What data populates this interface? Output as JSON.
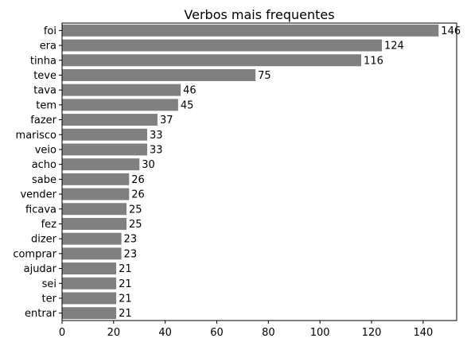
{
  "chart_data": {
    "type": "bar",
    "orientation": "horizontal",
    "title": "Verbos mais frequentes",
    "xlabel": "",
    "ylabel": "",
    "categories": [
      "foi",
      "era",
      "tinha",
      "teve",
      "tava",
      "tem",
      "fazer",
      "marisco",
      "veio",
      "acho",
      "sabe",
      "vender",
      "ficava",
      "fez",
      "dizer",
      "comprar",
      "ajudar",
      "sei",
      "ter",
      "entrar"
    ],
    "values": [
      146,
      124,
      116,
      75,
      46,
      45,
      37,
      33,
      33,
      30,
      26,
      26,
      25,
      25,
      23,
      23,
      21,
      21,
      21,
      21
    ],
    "xlim": [
      0,
      153
    ],
    "xticks": [
      0,
      20,
      40,
      60,
      80,
      100,
      120,
      140
    ],
    "bar_color": "#808080",
    "grid": false,
    "data_labels": true
  }
}
